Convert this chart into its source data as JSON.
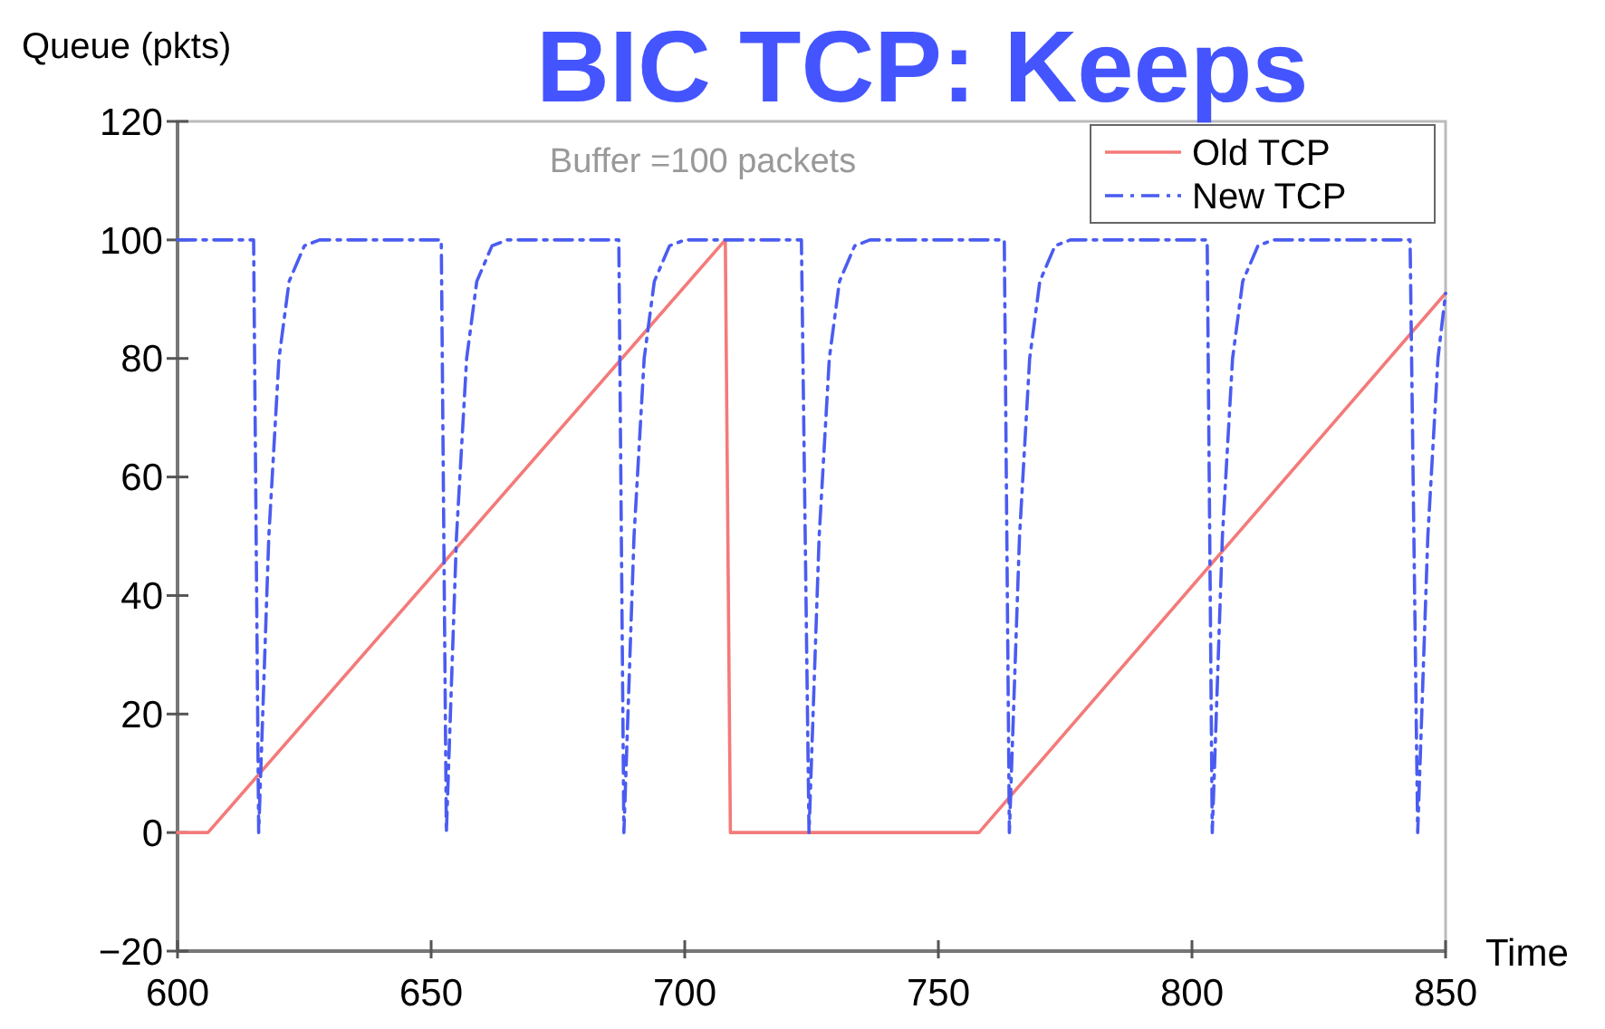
{
  "chart_data": {
    "type": "line",
    "title": "BIC TCP: Keeps",
    "subtitle": "Buffer =100 packets",
    "xlabel": "Time",
    "ylabel": "Queue (pkts)",
    "xlim": [
      600,
      850
    ],
    "xticks": [
      600,
      650,
      700,
      750,
      800,
      850
    ],
    "ylim": [
      -20,
      120
    ],
    "yticks": [
      {
        "value": -20,
        "label": "−20"
      },
      0,
      20,
      40,
      60,
      80,
      100,
      120
    ],
    "grid": false,
    "legend": "top right",
    "marker": "none",
    "series": [
      {
        "name": "Old TCP",
        "color": "#f47a7a",
        "line_style": "solid",
        "x": [
          600,
          606,
          708,
          709,
          758,
          850
        ],
        "values": [
          0,
          0,
          100,
          0,
          0,
          91
        ]
      },
      {
        "name": "New TCP",
        "color": "#4a5cf0",
        "line_style": "dashed",
        "x": [
          600,
          615,
          616,
          617,
          618,
          620,
          622,
          625,
          628,
          652,
          653,
          654,
          655,
          657,
          659,
          662,
          665,
          687,
          688,
          689,
          690,
          692,
          694,
          697,
          700,
          723,
          724.5,
          725.5,
          726.5,
          728.5,
          730.5,
          733.5,
          736.5,
          763,
          764,
          765,
          766,
          768,
          770,
          773,
          776,
          803,
          804,
          805,
          806,
          808,
          810,
          813,
          816,
          843,
          844.5,
          845.5,
          846.5,
          848.5,
          850
        ],
        "values": [
          100,
          100,
          0,
          25,
          50,
          80,
          93,
          99,
          100,
          100,
          0,
          25,
          50,
          80,
          93,
          99,
          100,
          100,
          0,
          25,
          50,
          80,
          93,
          99,
          100,
          100,
          0,
          25,
          50,
          80,
          93,
          99,
          100,
          100,
          0,
          25,
          50,
          80,
          93,
          99,
          100,
          100,
          0,
          25,
          50,
          80,
          93,
          99,
          100,
          100,
          0,
          25,
          50,
          80,
          91
        ]
      }
    ]
  }
}
